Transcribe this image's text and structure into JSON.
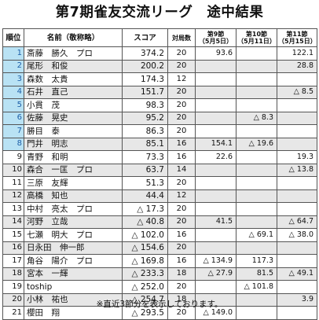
{
  "title": "第7期雀友交流リーグ　途中結果",
  "headers": {
    "rank": "順位",
    "name": "名前（敬称略）",
    "score": "スコア",
    "games": "対局数",
    "w9": "第9節\n（5月5日）",
    "w10": "第10節\n（5月11日）",
    "w11": "第11節\n（5月15日）"
  },
  "rows": [
    {
      "rank": "1",
      "name": "斎藤　勝久　プロ",
      "score": "374.2",
      "games": "20",
      "w9": "93.6",
      "w10": "",
      "w11": "122.1"
    },
    {
      "rank": "2",
      "name": "尾形　和俊",
      "score": "200.2",
      "games": "20",
      "w9": "",
      "w10": "",
      "w11": "28.8"
    },
    {
      "rank": "3",
      "name": "森数　太貴",
      "score": "174.3",
      "games": "12",
      "w9": "",
      "w10": "",
      "w11": ""
    },
    {
      "rank": "4",
      "name": "石井　直己",
      "score": "151.7",
      "games": "20",
      "w9": "",
      "w10": "",
      "w11": "△ 8.5"
    },
    {
      "rank": "5",
      "name": "小貫　茂",
      "score": "98.3",
      "games": "20",
      "w9": "",
      "w10": "",
      "w11": ""
    },
    {
      "rank": "6",
      "name": "佐藤　晃史",
      "score": "95.2",
      "games": "20",
      "w9": "",
      "w10": "△ 8.3",
      "w11": ""
    },
    {
      "rank": "7",
      "name": "勝目　泰",
      "score": "86.3",
      "games": "20",
      "w9": "",
      "w10": "",
      "w11": ""
    },
    {
      "rank": "8",
      "name": "門井　明志",
      "score": "85.1",
      "games": "16",
      "w9": "154.1",
      "w10": "△ 19.6",
      "w11": ""
    },
    {
      "rank": "9",
      "name": "青野　和明",
      "score": "73.3",
      "games": "16",
      "w9": "22.6",
      "w10": "",
      "w11": "19.3"
    },
    {
      "rank": "10",
      "name": "森合　一匡　プロ",
      "score": "63.7",
      "games": "14",
      "w9": "",
      "w10": "",
      "w11": "△ 13.8"
    },
    {
      "rank": "11",
      "name": "三原　友輝",
      "score": "51.3",
      "games": "20",
      "w9": "",
      "w10": "",
      "w11": ""
    },
    {
      "rank": "12",
      "name": "高橋　知也",
      "score": "44.4",
      "games": "12",
      "w9": "",
      "w10": "",
      "w11": ""
    },
    {
      "rank": "13",
      "name": "中村　亮太　プロ",
      "score": "△ 17.3",
      "games": "20",
      "w9": "",
      "w10": "",
      "w11": ""
    },
    {
      "rank": "14",
      "name": "河野　立哉",
      "score": "△ 40.8",
      "games": "20",
      "w9": "41.5",
      "w10": "",
      "w11": "△ 64.7"
    },
    {
      "rank": "15",
      "name": "七瀬　明大　プロ",
      "score": "△ 102.0",
      "games": "16",
      "w9": "",
      "w10": "△ 69.1",
      "w11": "△ 38.0"
    },
    {
      "rank": "16",
      "name": "日永田　伸一郎",
      "score": "△ 154.6",
      "games": "20",
      "w9": "",
      "w10": "",
      "w11": ""
    },
    {
      "rank": "17",
      "name": "角谷　陽介　プロ",
      "score": "△ 169.8",
      "games": "16",
      "w9": "△ 134.9",
      "w10": "117.3",
      "w11": ""
    },
    {
      "rank": "18",
      "name": "宮本　一輝",
      "score": "△ 233.3",
      "games": "18",
      "w9": "△ 27.9",
      "w10": "81.5",
      "w11": "△ 49.1"
    },
    {
      "rank": "19",
      "name": "toship",
      "score": "△ 252.0",
      "games": "20",
      "w9": "",
      "w10": "△ 101.8",
      "w11": ""
    },
    {
      "rank": "20",
      "name": "小林　祐也",
      "score": "△ 254.7",
      "games": "18",
      "w9": "",
      "w10": "",
      "w11": "3.9"
    },
    {
      "rank": "21",
      "name": "櫻田　翔",
      "score": "△ 293.5",
      "games": "20",
      "w9": "△ 149.0",
      "w10": "",
      "w11": ""
    }
  ],
  "footnote": "※直近3節分を表示しております。",
  "colors": {
    "rank_highlight_bg": "#b9e2f4",
    "rank_highlight_text": "#1d5fa8",
    "row_stripe": "#e7e7e7",
    "border": "#555555"
  },
  "highlighted_ranks": [
    "1",
    "2",
    "3",
    "4",
    "5",
    "6",
    "7",
    "8"
  ]
}
